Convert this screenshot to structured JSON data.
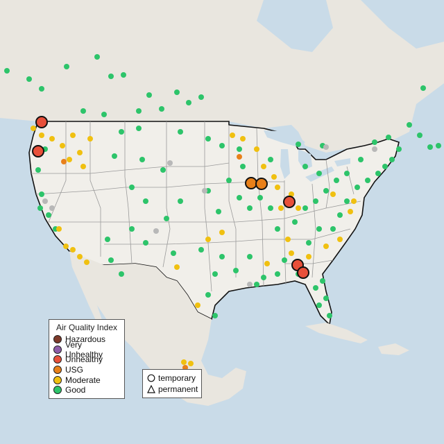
{
  "legend": {
    "title": "Air Quality Index",
    "items": [
      {
        "label": "Hazardous",
        "color": "#7e3a2a"
      },
      {
        "label": "Very Unhealthy",
        "color": "#8e5ca8"
      },
      {
        "label": "Unhealthy",
        "color": "#e8503a"
      },
      {
        "label": "USG",
        "color": "#e8801a"
      },
      {
        "label": "Moderate",
        "color": "#f0c010"
      },
      {
        "label": "Good",
        "color": "#2dc46a"
      }
    ]
  },
  "monitor_types": {
    "temporary": "temporary",
    "permanent": "permanent"
  },
  "colors": {
    "water": "#c9dbe8",
    "land": "#e9e6df",
    "us_land": "#f1efea",
    "border": "#111111",
    "state_lines": "#9a9a9a",
    "sensor_grey": "#b8b8b8"
  }
}
